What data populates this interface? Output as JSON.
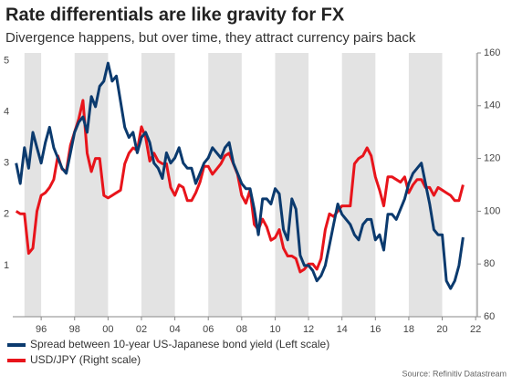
{
  "chart_data": {
    "type": "line",
    "title": "Rate differentials are like gravity for FX",
    "subtitle": "Divergence happens, but over time, they attract currency pairs back",
    "source": "Source: Refinitiv Datastream",
    "xlim": [
      1994.3,
      2022.1
    ],
    "xticks": [
      {
        "value": 1996,
        "label": "96"
      },
      {
        "value": 1998,
        "label": "98"
      },
      {
        "value": 2000,
        "label": "00"
      },
      {
        "value": 2002,
        "label": "02"
      },
      {
        "value": 2004,
        "label": "04"
      },
      {
        "value": 2006,
        "label": "06"
      },
      {
        "value": 2008,
        "label": "08"
      },
      {
        "value": 2010,
        "label": "10"
      },
      {
        "value": 2012,
        "label": "12"
      },
      {
        "value": 2014,
        "label": "14"
      },
      {
        "value": 2016,
        "label": "16"
      },
      {
        "value": 2018,
        "label": "18"
      },
      {
        "value": 2020,
        "label": "20"
      },
      {
        "value": 2022,
        "label": "22"
      }
    ],
    "ylim": [
      0,
      5.15
    ],
    "yticks": [
      1,
      2,
      3,
      4,
      5
    ],
    "y2lim": [
      60,
      160
    ],
    "y2ticks": [
      60,
      80,
      100,
      120,
      140,
      160
    ],
    "x": [
      1994.5,
      1994.75,
      1995,
      1995.25,
      1995.5,
      1995.75,
      1996,
      1996.25,
      1996.5,
      1996.75,
      1997,
      1997.25,
      1997.5,
      1997.75,
      1998,
      1998.25,
      1998.5,
      1998.75,
      1999,
      1999.25,
      1999.5,
      1999.75,
      2000,
      2000.25,
      2000.5,
      2000.75,
      2001,
      2001.25,
      2001.5,
      2001.75,
      2002,
      2002.25,
      2002.5,
      2002.75,
      2003,
      2003.25,
      2003.5,
      2003.75,
      2004,
      2004.25,
      2004.5,
      2004.75,
      2005,
      2005.25,
      2005.5,
      2005.75,
      2006,
      2006.25,
      2006.5,
      2006.75,
      2007,
      2007.25,
      2007.5,
      2007.75,
      2008,
      2008.25,
      2008.5,
      2008.75,
      2009,
      2009.25,
      2009.5,
      2009.75,
      2010,
      2010.25,
      2010.5,
      2010.75,
      2011,
      2011.25,
      2011.5,
      2011.75,
      2012,
      2012.25,
      2012.5,
      2012.75,
      2013,
      2013.25,
      2013.5,
      2013.75,
      2014,
      2014.25,
      2014.5,
      2014.75,
      2015,
      2015.25,
      2015.5,
      2015.75,
      2016,
      2016.25,
      2016.5,
      2016.75,
      2017,
      2017.25,
      2017.5,
      2017.75,
      2018,
      2018.25,
      2018.5,
      2018.75,
      2019,
      2019.25,
      2019.5,
      2019.75,
      2020,
      2020.25,
      2020.5,
      2020.75,
      2021,
      2021.25
    ],
    "series": [
      {
        "name": "USD/JPY (Right scale)",
        "color": "#e8141b",
        "axis": "y2",
        "values": [
          100,
          99,
          99,
          84,
          86,
          100,
          106,
          107,
          109,
          112,
          121,
          116,
          115,
          125,
          130,
          135,
          142,
          122,
          115,
          120,
          120,
          106,
          105,
          106,
          107,
          108,
          118,
          122,
          124,
          123,
          132,
          128,
          119,
          122,
          119,
          118,
          118,
          109,
          106,
          110,
          109,
          104,
          104,
          107,
          111,
          117,
          117,
          114,
          116,
          118,
          121,
          122,
          118,
          114,
          106,
          103,
          108,
          95,
          93,
          97,
          94,
          89,
          90,
          93,
          86,
          83,
          83,
          82,
          77,
          78,
          80,
          80,
          78,
          82,
          93,
          99,
          98,
          100,
          102,
          102,
          102,
          118,
          120,
          121,
          124,
          121,
          113,
          108,
          102,
          113,
          113,
          112,
          111,
          113,
          107,
          110,
          112,
          112,
          109,
          109,
          106,
          109,
          108,
          107,
          106,
          104,
          104,
          110
        ]
      },
      {
        "name": "Spread between 10-year US-Japanese bond yield (Left scale)",
        "color": "#0b3a6e",
        "axis": "y",
        "values": [
          3.0,
          2.6,
          3.3,
          2.9,
          3.6,
          3.3,
          3.0,
          3.4,
          3.7,
          3.3,
          3.1,
          2.9,
          2.8,
          3.2,
          3.6,
          3.8,
          3.9,
          3.6,
          4.3,
          4.1,
          4.5,
          4.6,
          4.95,
          4.6,
          4.7,
          4.2,
          3.7,
          3.5,
          3.6,
          3.2,
          3.5,
          3.6,
          3.4,
          3.0,
          2.9,
          2.7,
          3.2,
          3.0,
          3.1,
          3.3,
          3.0,
          2.9,
          2.9,
          2.6,
          2.8,
          3.0,
          3.1,
          3.3,
          3.2,
          3.1,
          3.3,
          3.4,
          3.0,
          2.8,
          2.6,
          2.5,
          2.5,
          2.1,
          1.6,
          2.3,
          2.3,
          2.2,
          2.5,
          2.4,
          1.7,
          1.5,
          2.3,
          2.1,
          1.2,
          1.0,
          1.0,
          0.9,
          0.7,
          0.8,
          1.0,
          1.4,
          1.8,
          2.2,
          2.0,
          1.9,
          1.8,
          1.6,
          1.5,
          1.8,
          1.9,
          1.9,
          1.5,
          1.6,
          1.3,
          2.0,
          2.0,
          1.9,
          2.1,
          2.3,
          2.6,
          2.8,
          2.9,
          3.0,
          2.6,
          2.2,
          1.7,
          1.6,
          1.6,
          0.7,
          0.55,
          0.7,
          1.0,
          1.55
        ]
      }
    ]
  }
}
